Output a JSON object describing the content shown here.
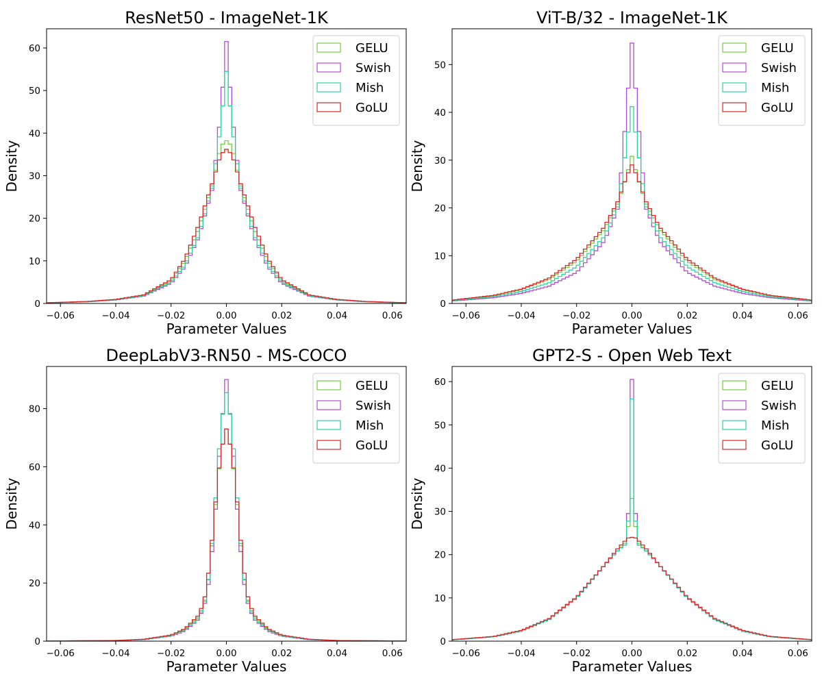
{
  "chart_data": [
    {
      "type": "histogram",
      "title": "ResNet50 - ImageNet-1K",
      "xlabel": "Parameter Values",
      "ylabel": "Density",
      "xlim": [
        -0.065,
        0.065
      ],
      "ylim": [
        0,
        64.5
      ],
      "xticks": [
        -0.06,
        -0.04,
        -0.02,
        0.0,
        0.02,
        0.04,
        0.06
      ],
      "xtick_labels": [
        "−0.06",
        "−0.04",
        "−0.02",
        "0.00",
        "0.02",
        "0.04",
        "0.06"
      ],
      "yticks": [
        0,
        10,
        20,
        30,
        40,
        50,
        60
      ],
      "legend_position": "top-right",
      "series": [
        {
          "name": "GELU",
          "color": "#77cc44",
          "peak": 38.2,
          "shape": [
            [
              0,
              38.2
            ],
            [
              0.002,
              37.0
            ],
            [
              0.005,
              28.0
            ],
            [
              0.01,
              17.5
            ],
            [
              0.015,
              10.0
            ],
            [
              0.02,
              5.3
            ],
            [
              0.03,
              1.9
            ],
            [
              0.04,
              0.9
            ],
            [
              0.05,
              0.45
            ],
            [
              0.065,
              0.15
            ]
          ]
        },
        {
          "name": "Swish",
          "color": "#b44ad4",
          "peak": 61.5,
          "shape": [
            [
              0,
              61.5
            ],
            [
              0.002,
              45.0
            ],
            [
              0.005,
              27.0
            ],
            [
              0.01,
              15.5
            ],
            [
              0.015,
              8.5
            ],
            [
              0.02,
              4.7
            ],
            [
              0.03,
              1.7
            ],
            [
              0.04,
              0.8
            ],
            [
              0.05,
              0.4
            ],
            [
              0.065,
              0.12
            ]
          ]
        },
        {
          "name": "Mish",
          "color": "#2ecf9f",
          "peak": 54.5,
          "shape": [
            [
              0,
              54.5
            ],
            [
              0.002,
              42.0
            ],
            [
              0.005,
              27.5
            ],
            [
              0.01,
              16.0
            ],
            [
              0.015,
              9.0
            ],
            [
              0.02,
              5.0
            ],
            [
              0.03,
              1.8
            ],
            [
              0.04,
              0.85
            ],
            [
              0.05,
              0.42
            ],
            [
              0.065,
              0.13
            ]
          ]
        },
        {
          "name": "GoLU",
          "color": "#d62728",
          "peak": 36.2,
          "shape": [
            [
              0,
              36.2
            ],
            [
              0.002,
              35.0
            ],
            [
              0.005,
              28.5
            ],
            [
              0.01,
              18.5
            ],
            [
              0.015,
              10.5
            ],
            [
              0.02,
              5.6
            ],
            [
              0.03,
              2.0
            ],
            [
              0.04,
              0.95
            ],
            [
              0.05,
              0.48
            ],
            [
              0.065,
              0.16
            ]
          ]
        }
      ]
    },
    {
      "type": "histogram",
      "title": "ViT-B/32 - ImageNet-1K",
      "xlabel": "Parameter Values",
      "ylabel": "Density",
      "xlim": [
        -0.065,
        0.065
      ],
      "ylim": [
        0,
        57.5
      ],
      "xticks": [
        -0.06,
        -0.04,
        -0.02,
        0.0,
        0.02,
        0.04,
        0.06
      ],
      "xtick_labels": [
        "−0.06",
        "−0.04",
        "−0.02",
        "0.00",
        "0.02",
        "0.04",
        "0.06"
      ],
      "yticks": [
        0,
        10,
        20,
        30,
        40,
        50
      ],
      "legend_position": "top-right",
      "series": [
        {
          "name": "GELU",
          "color": "#77cc44",
          "peak": 30.8,
          "shape": [
            [
              0,
              30.8
            ],
            [
              0.002,
              26.5
            ],
            [
              0.005,
              21.0
            ],
            [
              0.01,
              15.5
            ],
            [
              0.02,
              8.8
            ],
            [
              0.03,
              5.0
            ],
            [
              0.04,
              2.9
            ],
            [
              0.05,
              1.6
            ],
            [
              0.065,
              0.65
            ]
          ]
        },
        {
          "name": "Swish",
          "color": "#b44ad4",
          "peak": 54.5,
          "shape": [
            [
              0,
              54.5
            ],
            [
              0.002,
              40.0
            ],
            [
              0.005,
              20.0
            ],
            [
              0.01,
              13.0
            ],
            [
              0.02,
              6.5
            ],
            [
              0.03,
              3.6
            ],
            [
              0.04,
              2.1
            ],
            [
              0.05,
              1.2
            ],
            [
              0.065,
              0.5
            ]
          ]
        },
        {
          "name": "Mish",
          "color": "#2ecf9f",
          "peak": 41.2,
          "shape": [
            [
              0,
              41.2
            ],
            [
              0.002,
              33.0
            ],
            [
              0.005,
              20.5
            ],
            [
              0.01,
              14.0
            ],
            [
              0.02,
              7.7
            ],
            [
              0.03,
              4.3
            ],
            [
              0.04,
              2.5
            ],
            [
              0.05,
              1.4
            ],
            [
              0.065,
              0.58
            ]
          ]
        },
        {
          "name": "GoLU",
          "color": "#d62728",
          "peak": 29.0,
          "shape": [
            [
              0,
              29.0
            ],
            [
              0.002,
              26.5
            ],
            [
              0.005,
              21.5
            ],
            [
              0.01,
              16.0
            ],
            [
              0.02,
              9.3
            ],
            [
              0.03,
              5.3
            ],
            [
              0.04,
              3.0
            ],
            [
              0.05,
              1.7
            ],
            [
              0.065,
              0.7
            ]
          ]
        }
      ]
    },
    {
      "type": "histogram",
      "title": "DeepLabV3-RN50 - MS-COCO",
      "xlabel": "Parameter Values",
      "ylabel": "Density",
      "xlim": [
        -0.065,
        0.065
      ],
      "ylim": [
        0,
        94.5
      ],
      "xticks": [
        -0.06,
        -0.04,
        -0.02,
        0.0,
        0.02,
        0.04,
        0.06
      ],
      "xtick_labels": [
        "−0.06",
        "−0.04",
        "−0.02",
        "0.00",
        "0.02",
        "0.04",
        "0.06"
      ],
      "yticks": [
        0,
        20,
        40,
        60,
        80
      ],
      "legend_position": "top-right",
      "series": [
        {
          "name": "GELU",
          "color": "#77cc44",
          "peak": 73.0,
          "shape": [
            [
              0,
              73.0
            ],
            [
              0.002,
              65.0
            ],
            [
              0.004,
              46.0
            ],
            [
              0.006,
              24.0
            ],
            [
              0.008,
              13.0
            ],
            [
              0.01,
              8.5
            ],
            [
              0.015,
              4.0
            ],
            [
              0.02,
              2.0
            ],
            [
              0.03,
              0.6
            ],
            [
              0.04,
              0.2
            ],
            [
              0.065,
              0.05
            ]
          ]
        },
        {
          "name": "Swish",
          "color": "#b44ad4",
          "peak": 90.0,
          "shape": [
            [
              0,
              90.0
            ],
            [
              0.002,
              72.0
            ],
            [
              0.004,
              44.0
            ],
            [
              0.006,
              22.0
            ],
            [
              0.008,
              12.0
            ],
            [
              0.01,
              7.5
            ],
            [
              0.015,
              3.5
            ],
            [
              0.02,
              1.7
            ],
            [
              0.03,
              0.5
            ],
            [
              0.04,
              0.18
            ],
            [
              0.065,
              0.04
            ]
          ]
        },
        {
          "name": "Mish",
          "color": "#2ecf9f",
          "peak": 85.5,
          "shape": [
            [
              0,
              85.5
            ],
            [
              0.002,
              74.0
            ],
            [
              0.004,
              48.0
            ],
            [
              0.006,
              24.0
            ],
            [
              0.008,
              12.5
            ],
            [
              0.01,
              8.0
            ],
            [
              0.015,
              3.7
            ],
            [
              0.02,
              1.8
            ],
            [
              0.03,
              0.55
            ],
            [
              0.04,
              0.19
            ],
            [
              0.065,
              0.05
            ]
          ]
        },
        {
          "name": "GoLU",
          "color": "#d62728",
          "peak": 73.0,
          "shape": [
            [
              0,
              73.0
            ],
            [
              0.002,
              65.0
            ],
            [
              0.004,
              47.0
            ],
            [
              0.006,
              26.5
            ],
            [
              0.008,
              14.0
            ],
            [
              0.01,
              9.0
            ],
            [
              0.015,
              4.3
            ],
            [
              0.02,
              2.1
            ],
            [
              0.03,
              0.65
            ],
            [
              0.04,
              0.22
            ],
            [
              0.065,
              0.05
            ]
          ]
        }
      ]
    },
    {
      "type": "histogram",
      "title": "GPT2-S - Open Web Text",
      "xlabel": "Parameter Values",
      "ylabel": "Density",
      "xlim": [
        -0.065,
        0.065
      ],
      "ylim": [
        0,
        63.5
      ],
      "xticks": [
        -0.06,
        -0.04,
        -0.02,
        0.0,
        0.02,
        0.04,
        0.06
      ],
      "xtick_labels": [
        "−0.06",
        "−0.04",
        "−0.02",
        "0.00",
        "0.02",
        "0.04",
        "0.06"
      ],
      "yticks": [
        0,
        10,
        20,
        30,
        40,
        50,
        60
      ],
      "legend_position": "top-right",
      "series": [
        {
          "name": "GELU",
          "color": "#77cc44",
          "peak": 33.0,
          "shape": [
            [
              0,
              33.0
            ],
            [
              0.001,
              28.0
            ],
            [
              0.002,
              23.0
            ],
            [
              0.005,
              21.0
            ],
            [
              0.01,
              17.5
            ],
            [
              0.02,
              10.0
            ],
            [
              0.03,
              5.0
            ],
            [
              0.04,
              2.3
            ],
            [
              0.05,
              1.0
            ],
            [
              0.065,
              0.3
            ]
          ]
        },
        {
          "name": "Swish",
          "color": "#b44ad4",
          "peak": 60.5,
          "shape": [
            [
              0,
              60.5
            ],
            [
              0.001,
              32.5
            ],
            [
              0.002,
              22.5
            ],
            [
              0.005,
              21.0
            ],
            [
              0.01,
              17.5
            ],
            [
              0.02,
              10.0
            ],
            [
              0.03,
              5.0
            ],
            [
              0.04,
              2.3
            ],
            [
              0.05,
              1.0
            ],
            [
              0.065,
              0.3
            ]
          ]
        },
        {
          "name": "Mish",
          "color": "#2ecf9f",
          "peak": 56.0,
          "shape": [
            [
              0,
              56.0
            ],
            [
              0.001,
              30.0
            ],
            [
              0.002,
              22.5
            ],
            [
              0.005,
              21.0
            ],
            [
              0.01,
              17.5
            ],
            [
              0.02,
              10.0
            ],
            [
              0.03,
              5.0
            ],
            [
              0.04,
              2.3
            ],
            [
              0.05,
              1.0
            ],
            [
              0.065,
              0.3
            ]
          ]
        },
        {
          "name": "GoLU",
          "color": "#d62728",
          "peak": 24.0,
          "shape": [
            [
              0,
              24.0
            ],
            [
              0.001,
              24.0
            ],
            [
              0.002,
              23.5
            ],
            [
              0.005,
              21.5
            ],
            [
              0.01,
              17.5
            ],
            [
              0.02,
              10.2
            ],
            [
              0.03,
              5.2
            ],
            [
              0.04,
              2.5
            ],
            [
              0.05,
              1.1
            ],
            [
              0.065,
              0.35
            ]
          ]
        }
      ]
    }
  ]
}
